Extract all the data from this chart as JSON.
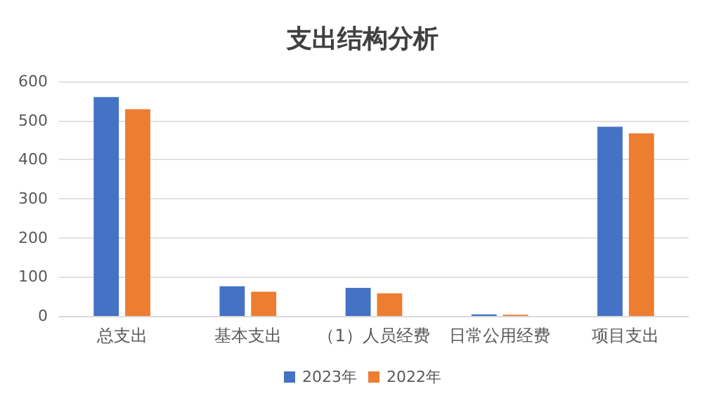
{
  "chart_data": {
    "type": "bar",
    "title": "支出结构分析",
    "categories": [
      "总支出",
      "基本支出",
      "（1）人员经费",
      "日常公用经费",
      "项目支出"
    ],
    "series": [
      {
        "name": "2023年",
        "color": "#4472c4",
        "values": [
          560,
          76,
          72,
          4,
          484
        ]
      },
      {
        "name": "2022年",
        "color": "#ed7d31",
        "values": [
          529,
          62,
          58,
          3,
          467
        ]
      }
    ],
    "ylim": [
      0,
      600
    ],
    "yticks": [
      0,
      100,
      200,
      300,
      400,
      500,
      600
    ],
    "grid": "y",
    "legend": "bottom"
  }
}
